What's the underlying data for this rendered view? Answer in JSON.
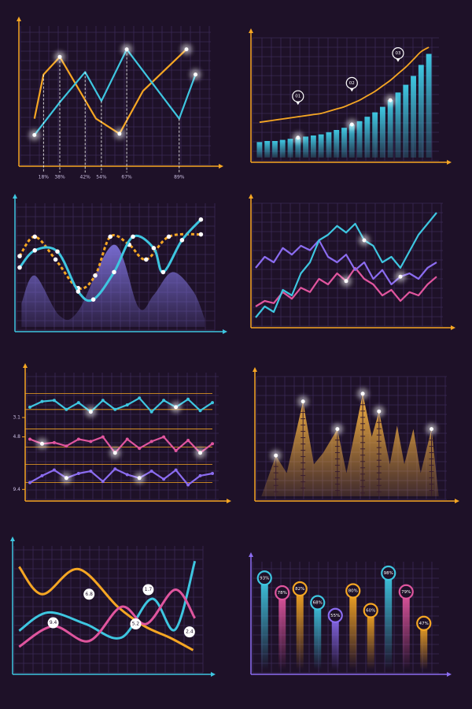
{
  "chart_data": [
    {
      "type": "line",
      "xlim": [
        0,
        100
      ],
      "ylim": [
        0,
        100
      ],
      "axis_color": "#f5a623",
      "series": [
        {
          "color": "#f5a623",
          "x": [
            6,
            11,
            20,
            40,
            53,
            66,
            90
          ],
          "values": [
            34,
            69,
            83,
            34,
            22,
            56,
            89
          ],
          "highlight": [
            2,
            4,
            6
          ]
        },
        {
          "color": "#3ec6e0",
          "x": [
            6,
            20,
            34,
            43,
            57,
            86,
            95
          ],
          "values": [
            21,
            47,
            71,
            48,
            89,
            34,
            69
          ],
          "highlight": [
            0,
            4,
            6
          ]
        }
      ],
      "annotations": [
        {
          "x": 11,
          "label": "18%"
        },
        {
          "x": 20,
          "label": "38%"
        },
        {
          "x": 34,
          "label": "42%"
        },
        {
          "x": 43,
          "label": "54%"
        },
        {
          "x": 57,
          "label": "67%"
        },
        {
          "x": 86,
          "label": "89%"
        }
      ]
    },
    {
      "type": "bar",
      "ylim": [
        0,
        100
      ],
      "axis_color": "#f5a623",
      "color": "#3ec6e0",
      "categories": [
        null,
        null,
        null,
        null,
        null,
        null,
        null,
        null,
        null,
        null,
        null,
        null,
        null,
        null,
        null,
        null,
        null,
        null,
        null,
        null,
        null,
        null,
        null
      ],
      "values": [
        14,
        15,
        15,
        16,
        17,
        18,
        19,
        20,
        21,
        23,
        25,
        27,
        30,
        33,
        37,
        41,
        46,
        52,
        59,
        66,
        74,
        84,
        94
      ],
      "highlight": [
        5,
        12,
        17
      ],
      "trend": {
        "color": "#f5a623",
        "values": [
          32,
          33,
          34,
          35,
          36,
          37,
          38,
          39,
          40,
          42,
          44,
          46,
          49,
          52,
          56,
          60,
          65,
          70,
          76,
          82,
          89,
          96,
          100
        ]
      },
      "annotations": [
        {
          "index": 5,
          "label": "01"
        },
        {
          "index": 12,
          "label": "02"
        },
        {
          "index": 18,
          "label": "03"
        }
      ]
    },
    {
      "type": "line",
      "xlim": [
        0,
        100
      ],
      "ylim": [
        0,
        100
      ],
      "axis_color": "#3ec6e0",
      "series": [
        {
          "color": "#7b6fd6",
          "area": true,
          "smooth": true,
          "x": [
            1,
            8,
            21,
            31,
            50,
            63,
            71,
            81,
            92,
            98
          ],
          "values": [
            21,
            45,
            10,
            14,
            72,
            17,
            28,
            48,
            31,
            7
          ]
        },
        {
          "color": "#f5a623",
          "smooth": true,
          "dashed": true,
          "dots": true,
          "x": [
            0,
            8,
            19,
            31,
            40,
            48,
            58,
            67,
            79,
            96
          ],
          "values": [
            62,
            79,
            59,
            34,
            45,
            79,
            72,
            59,
            79,
            81
          ]
        },
        {
          "color": "#3ec6e0",
          "smooth": true,
          "dots": true,
          "x": [
            0,
            8,
            20,
            31,
            39,
            50,
            60,
            71,
            76,
            86,
            96
          ],
          "values": [
            52,
            67,
            66,
            31,
            24,
            48,
            79,
            69,
            48,
            76,
            94
          ]
        }
      ]
    },
    {
      "type": "line",
      "xlim": [
        0,
        100
      ],
      "ylim": [
        0,
        100
      ],
      "axis_color": "#f5a623",
      "x": [
        0,
        5,
        10,
        15,
        20,
        25,
        30,
        35,
        40,
        45,
        50,
        55,
        60,
        65,
        70,
        75,
        80,
        85,
        90,
        95,
        100
      ],
      "series": [
        {
          "color": "#e0559e",
          "values": [
            15,
            20,
            18,
            28,
            22,
            32,
            28,
            40,
            35,
            45,
            38,
            50,
            40,
            35,
            25,
            30,
            20,
            28,
            25,
            35,
            42
          ],
          "highlight": [
            10
          ]
        },
        {
          "color": "#8b6cf0",
          "values": [
            50,
            60,
            55,
            68,
            62,
            70,
            66,
            75,
            60,
            55,
            62,
            48,
            55,
            40,
            48,
            35,
            42,
            45,
            40,
            50,
            55
          ],
          "highlight": [
            16
          ]
        },
        {
          "color": "#3ec6e0",
          "values": [
            5,
            15,
            10,
            30,
            25,
            45,
            55,
            75,
            80,
            88,
            82,
            90,
            75,
            70,
            55,
            60,
            50,
            65,
            80,
            90,
            100
          ],
          "highlight": [
            12
          ]
        }
      ]
    },
    {
      "type": "line",
      "xlim": [
        0,
        15
      ],
      "ylim": [
        0,
        100
      ],
      "axis_color": "#f5a623",
      "x": [
        0,
        1,
        2,
        3,
        4,
        5,
        6,
        7,
        8,
        9,
        10,
        11,
        12,
        13,
        14,
        15
      ],
      "yticks": [
        {
          "value": 69,
          "label": "3.1"
        },
        {
          "value": 52,
          "label": "4.8"
        },
        {
          "value": 6,
          "label": "9.4"
        }
      ],
      "reference_lines": [
        90,
        76,
        59,
        43,
        28,
        12
      ],
      "series": [
        {
          "color": "#3ec6e0",
          "dots": true,
          "values": [
            78,
            83,
            84,
            76,
            82,
            74,
            84,
            76,
            80,
            86,
            74,
            84,
            78,
            85,
            75,
            82
          ],
          "highlight": [
            5,
            12
          ]
        },
        {
          "color": "#e0559e",
          "dots": true,
          "values": [
            50,
            46,
            47,
            44,
            50,
            48,
            52,
            38,
            50,
            42,
            48,
            52,
            40,
            49,
            38,
            46
          ],
          "highlight": [
            1,
            7,
            14
          ]
        },
        {
          "color": "#8b6cf0",
          "dots": true,
          "values": [
            12,
            18,
            23,
            16,
            20,
            22,
            13,
            24,
            19,
            16,
            22,
            15,
            23,
            10,
            18,
            20
          ],
          "highlight": [
            3,
            9
          ]
        }
      ]
    },
    {
      "type": "area",
      "xlim": [
        0,
        100
      ],
      "ylim": [
        0,
        100
      ],
      "axis_color": "#f5a623",
      "color": "#f5b041",
      "x": [
        1,
        9,
        15,
        24,
        30,
        35,
        43,
        48,
        57,
        62,
        66,
        72,
        76,
        80,
        85,
        89,
        95,
        99
      ],
      "values": [
        0,
        37,
        21,
        86,
        29,
        39,
        61,
        21,
        93,
        54,
        77,
        29,
        64,
        29,
        61,
        21,
        61,
        0
      ],
      "highlight": [
        1,
        3,
        6,
        8,
        10,
        16
      ]
    },
    {
      "type": "line",
      "xlim": [
        0,
        100
      ],
      "ylim": [
        0,
        100
      ],
      "axis_color": "#3ec6e0",
      "series": [
        {
          "color": "#f5a623",
          "smooth": true,
          "x": [
            1,
            14,
            34,
            56,
            71,
            85,
            98
          ],
          "values": [
            90,
            66,
            88,
            55,
            38,
            28,
            17
          ]
        },
        {
          "color": "#3ec6e0",
          "smooth": true,
          "x": [
            1,
            17,
            38,
            58,
            75,
            88,
            99
          ],
          "values": [
            34,
            50,
            40,
            28,
            62,
            35,
            95
          ]
        },
        {
          "color": "#e0559e",
          "smooth": true,
          "x": [
            1,
            20,
            40,
            58,
            72,
            88,
            99
          ],
          "values": [
            20,
            38,
            25,
            55,
            40,
            70,
            45
          ]
        }
      ],
      "annotations": [
        {
          "x": 40,
          "y": 66,
          "label": "6.8"
        },
        {
          "x": 20,
          "y": 41,
          "label": "9.4"
        },
        {
          "x": 73,
          "y": 70,
          "label": "1.7"
        },
        {
          "x": 66,
          "y": 40,
          "label": "5.2"
        },
        {
          "x": 96,
          "y": 33,
          "label": "2.4"
        }
      ]
    },
    {
      "type": "bar",
      "style": "lollipop",
      "ylim": [
        0,
        100
      ],
      "axis_color": "#8b6cf0",
      "categories": [
        null,
        null,
        null,
        null,
        null,
        null,
        null,
        null,
        null,
        null
      ],
      "values": [
        93,
        78,
        82,
        68,
        55,
        80,
        60,
        98,
        79,
        47
      ],
      "value_labels": [
        "93%",
        "78%",
        "82%",
        "68%",
        "55%",
        "80%",
        "60%",
        "98%",
        "79%",
        "47%"
      ],
      "colors": [
        "#3ec6e0",
        "#e0559e",
        "#f5a623",
        "#3ec6e0",
        "#8b6cf0",
        "#f5a623",
        "#f5a623",
        "#3ec6e0",
        "#e0559e",
        "#f5a623"
      ]
    }
  ]
}
